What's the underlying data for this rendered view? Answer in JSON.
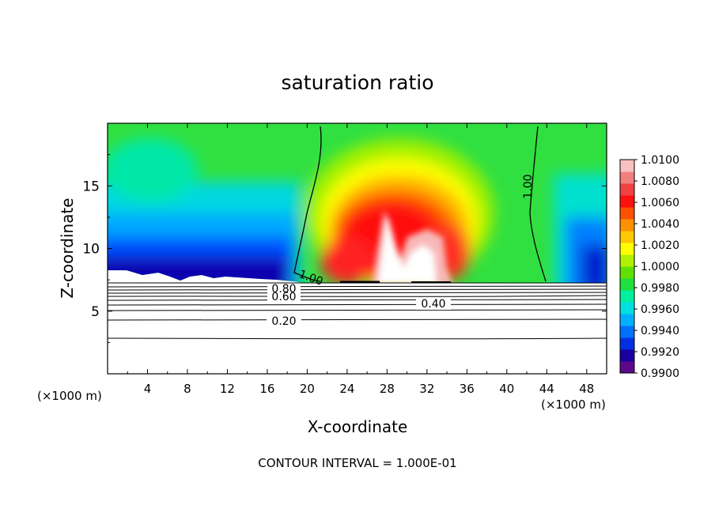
{
  "chart_data": {
    "type": "heatmap",
    "title": "saturation ratio",
    "xlabel": "X-coordinate",
    "ylabel": "Z-coordinate",
    "x_unit": "(×1000 m)",
    "y_unit": "(×1000 m)",
    "xlim": [
      0,
      50
    ],
    "ylim": [
      0,
      20
    ],
    "x_ticks": [
      4,
      8,
      12,
      16,
      20,
      24,
      28,
      32,
      36,
      40,
      44,
      48
    ],
    "y_ticks": [
      5,
      10,
      15
    ],
    "footer": "CONTOUR INTERVAL = 1.000E-01",
    "colorbar": {
      "min": 0.99,
      "max": 1.01,
      "labels": [
        "1.0100",
        "1.0080",
        "1.0060",
        "1.0040",
        "1.0020",
        "1.0000",
        "0.9980",
        "0.9960",
        "0.9940",
        "0.9920",
        "0.9900"
      ],
      "colors": [
        "#5a0a8a",
        "#1a00a0",
        "#0030e0",
        "#0070ff",
        "#00b0ff",
        "#00e0e0",
        "#00f0a0",
        "#20e040",
        "#60e000",
        "#b0f000",
        "#ffff00",
        "#ffc800",
        "#ff9000",
        "#ff5000",
        "#ff1010",
        "#f04040",
        "#f08080",
        "#f8c0c0"
      ]
    },
    "contour_labels": [
      {
        "text": "1.00",
        "x": 19.5,
        "z": 7.7
      },
      {
        "text": "1.00",
        "x": 42.3,
        "z": 14.8
      },
      {
        "text": "0.80",
        "x": 17.5,
        "z": 6.6
      },
      {
        "text": "0.60",
        "x": 17.5,
        "z": 6.1
      },
      {
        "text": "0.40",
        "x": 32.5,
        "z": 5.5
      },
      {
        "text": "0.20",
        "x": 17.5,
        "z": 4.1
      }
    ],
    "contour_levels_below": [
      0.2,
      0.4,
      0.6,
      0.8,
      1.0
    ],
    "grid": false
  }
}
